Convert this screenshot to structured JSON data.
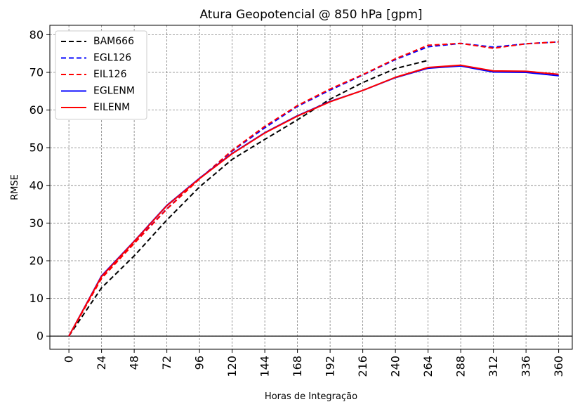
{
  "chart_data": {
    "type": "line",
    "title": "Atura Geopotencial @ 850 hPa [gpm]",
    "xlabel": "Horas de Integração",
    "ylabel": "RMSE",
    "x": [
      0,
      24,
      48,
      72,
      96,
      120,
      144,
      168,
      192,
      216,
      240,
      264,
      288,
      312,
      336,
      360
    ],
    "x_tick_labels": [
      "0",
      "24",
      "48",
      "72",
      "96",
      "120",
      "144",
      "168",
      "192",
      "216",
      "240",
      "264",
      "288",
      "312",
      "336",
      "360"
    ],
    "y_ticks": [
      0,
      10,
      20,
      30,
      40,
      50,
      60,
      70,
      80
    ],
    "y_tick_labels": [
      "0",
      "10",
      "20",
      "30",
      "40",
      "50",
      "60",
      "70",
      "80"
    ],
    "ylim": [
      -3.5,
      82.5
    ],
    "xlim": [
      -14,
      370
    ],
    "grid": true,
    "legend_position": "top-left",
    "series": [
      {
        "name": "BAM666",
        "color": "#000000",
        "dash": "dashed",
        "values": [
          0,
          12.8,
          21.3,
          30.8,
          39.6,
          46.9,
          52.2,
          57.4,
          62.9,
          67.3,
          71.0,
          73.2,
          null,
          null,
          null,
          null
        ]
      },
      {
        "name": "EGL126",
        "color": "#0000ff",
        "dash": "dashed",
        "values": [
          0,
          15.5,
          24.7,
          33.8,
          41.8,
          49.1,
          55.3,
          61.0,
          65.3,
          69.3,
          73.4,
          76.8,
          77.7,
          76.7,
          77.6,
          78.1
        ]
      },
      {
        "name": "EIL126",
        "color": "#ff0000",
        "dash": "dashed",
        "values": [
          0,
          15.3,
          24.6,
          33.7,
          41.7,
          49.3,
          55.7,
          61.2,
          65.6,
          69.4,
          73.6,
          77.2,
          77.7,
          76.4,
          77.6,
          78.1
        ]
      },
      {
        "name": "EGLENM",
        "color": "#0000ff",
        "dash": "solid",
        "values": [
          0,
          16.0,
          25.2,
          34.7,
          41.9,
          48.5,
          54.0,
          58.5,
          62.3,
          65.2,
          68.6,
          71.1,
          71.7,
          70.1,
          70.0,
          69.1
        ]
      },
      {
        "name": "EILENM",
        "color": "#ff0000",
        "dash": "solid",
        "values": [
          0,
          15.8,
          25.1,
          34.6,
          41.8,
          48.4,
          53.9,
          58.4,
          62.2,
          65.2,
          68.7,
          71.3,
          71.9,
          70.4,
          70.3,
          69.5
        ]
      }
    ]
  }
}
